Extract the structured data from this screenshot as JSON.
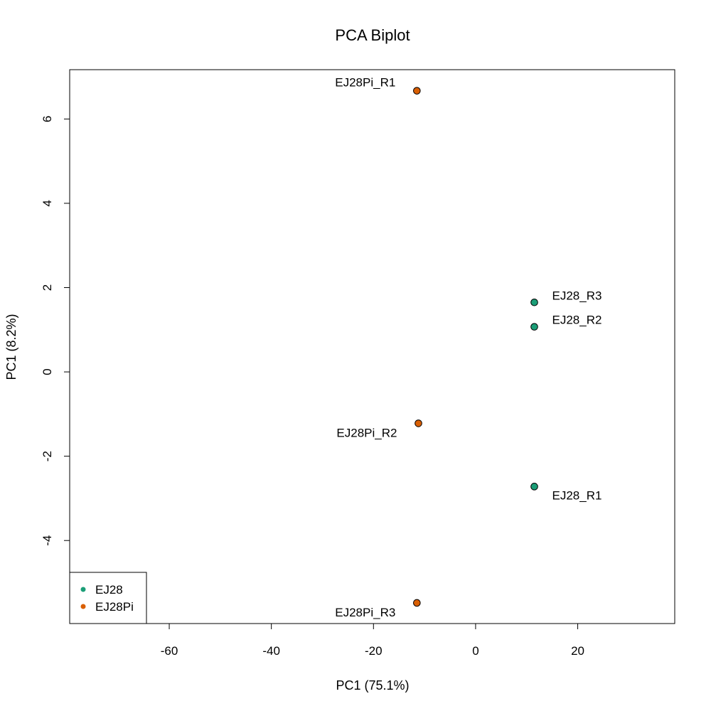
{
  "chart_data": {
    "type": "scatter",
    "title": "PCA Biplot",
    "xlabel": "PC1 (75.1%)",
    "ylabel": "PC1 (8.2%)",
    "xlim": [
      -79.5,
      39
    ],
    "ylim": [
      -5.97,
      7.17
    ],
    "x_ticks": [
      -60,
      -40,
      -20,
      0,
      20
    ],
    "y_ticks": [
      -4,
      -2,
      0,
      2,
      4,
      6
    ],
    "grid": false,
    "legend_position": "bottom-left",
    "series": [
      {
        "name": "EJ28",
        "color": "#1b9e77",
        "points": [
          {
            "label": "EJ28_R3",
            "x": 11.5,
            "y": 1.65,
            "label_pos": "right-above"
          },
          {
            "label": "EJ28_R2",
            "x": 11.5,
            "y": 1.07,
            "label_pos": "right-above"
          },
          {
            "label": "EJ28_R1",
            "x": 11.5,
            "y": -2.72,
            "label_pos": "right-below"
          }
        ]
      },
      {
        "name": "EJ28Pi",
        "color": "#d95f02",
        "points": [
          {
            "label": "EJ28Pi_R1",
            "x": -11.5,
            "y": 6.67,
            "label_pos": "left-above"
          },
          {
            "label": "EJ28Pi_R2",
            "x": -11.2,
            "y": -1.22,
            "label_pos": "left-below"
          },
          {
            "label": "EJ28Pi_R3",
            "x": -11.5,
            "y": -5.48,
            "label_pos": "left-below"
          }
        ]
      }
    ]
  }
}
